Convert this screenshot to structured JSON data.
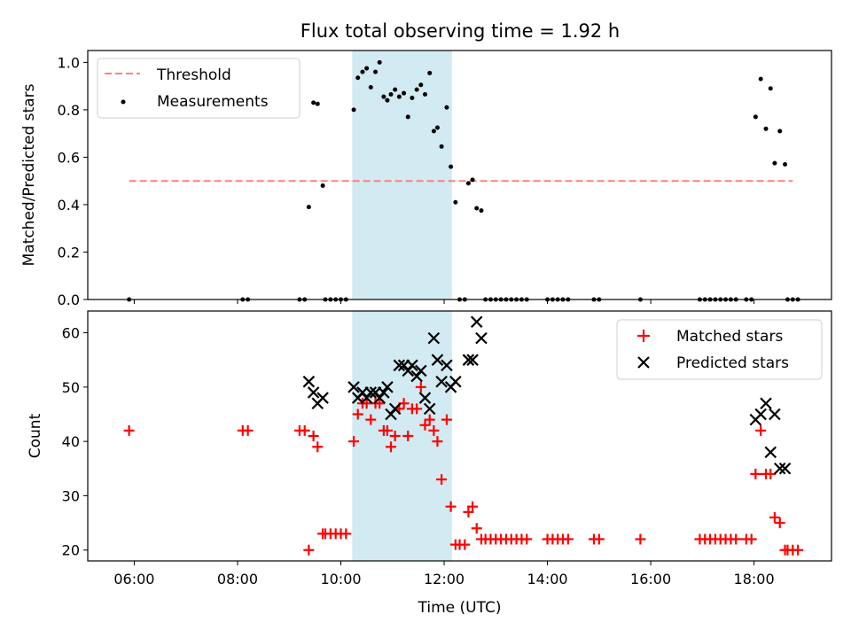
{
  "chart_data": {
    "title": "Flux total observing time = 1.92 h",
    "xlabel": "Time (UTC)",
    "x_unit": "hours",
    "xlim": [
      5.1,
      19.5
    ],
    "x_ticks": [
      6,
      8,
      10,
      12,
      14,
      16,
      18
    ],
    "x_tick_labels": [
      "06:00",
      "08:00",
      "10:00",
      "12:00",
      "14:00",
      "16:00",
      "18:00"
    ],
    "highlight_span": {
      "x": [
        10.22,
        12.15
      ],
      "color": "#add8e6"
    },
    "panels": [
      {
        "type": "scatter",
        "ylabel": "Matched/Predicted stars",
        "ylim": [
          0,
          1.05
        ],
        "y_ticks": [
          0.0,
          0.2,
          0.4,
          0.6,
          0.8,
          1.0
        ],
        "y_tick_labels": [
          "0.0",
          "0.2",
          "0.4",
          "0.6",
          "0.8",
          "1.0"
        ],
        "legend": {
          "placement": "top-left",
          "entries": [
            {
              "label": "Threshold",
              "style": "dashed-line",
              "color": "#ff7f7f"
            },
            {
              "label": "Measurements",
              "style": "dot",
              "color": "#000000"
            }
          ]
        },
        "threshold": {
          "name": "Threshold",
          "y": 0.5,
          "x": [
            5.9,
            18.75
          ],
          "color": "#ff7f7f"
        },
        "series": [
          {
            "name": "Measurements",
            "marker": "dot",
            "color": "#000000",
            "points": [
              [
                5.9,
                0.0
              ],
              [
                8.1,
                0.0
              ],
              [
                8.2,
                0.0
              ],
              [
                9.2,
                0.0
              ],
              [
                9.3,
                0.0
              ],
              [
                9.38,
                0.39
              ],
              [
                9.47,
                0.83
              ],
              [
                9.55,
                0.825
              ],
              [
                9.65,
                0.48
              ],
              [
                9.7,
                0.0
              ],
              [
                9.8,
                0.0
              ],
              [
                9.9,
                0.0
              ],
              [
                10.0,
                0.0
              ],
              [
                10.1,
                0.0
              ],
              [
                10.25,
                0.8
              ],
              [
                10.33,
                0.935
              ],
              [
                10.42,
                0.96
              ],
              [
                10.5,
                0.975
              ],
              [
                10.58,
                0.895
              ],
              [
                10.67,
                0.96
              ],
              [
                10.75,
                1.0
              ],
              [
                10.83,
                0.855
              ],
              [
                10.9,
                0.84
              ],
              [
                10.97,
                0.865
              ],
              [
                11.05,
                0.885
              ],
              [
                11.13,
                0.855
              ],
              [
                11.22,
                0.87
              ],
              [
                11.3,
                0.77
              ],
              [
                11.38,
                0.85
              ],
              [
                11.47,
                0.885
              ],
              [
                11.55,
                0.905
              ],
              [
                11.63,
                0.865
              ],
              [
                11.72,
                0.955
              ],
              [
                11.8,
                0.71
              ],
              [
                11.87,
                0.725
              ],
              [
                11.95,
                0.645
              ],
              [
                12.05,
                0.81
              ],
              [
                12.13,
                0.56
              ],
              [
                12.22,
                0.41
              ],
              [
                12.3,
                0.0
              ],
              [
                12.4,
                0.0
              ],
              [
                12.47,
                0.49
              ],
              [
                12.55,
                0.505
              ],
              [
                12.63,
                0.385
              ],
              [
                12.72,
                0.375
              ],
              [
                12.8,
                0.0
              ],
              [
                12.9,
                0.0
              ],
              [
                13.0,
                0.0
              ],
              [
                13.1,
                0.0
              ],
              [
                13.2,
                0.0
              ],
              [
                13.3,
                0.0
              ],
              [
                13.4,
                0.0
              ],
              [
                13.5,
                0.0
              ],
              [
                13.6,
                0.0
              ],
              [
                14.0,
                0.0
              ],
              [
                14.1,
                0.0
              ],
              [
                14.2,
                0.0
              ],
              [
                14.3,
                0.0
              ],
              [
                14.4,
                0.0
              ],
              [
                14.9,
                0.0
              ],
              [
                15.0,
                0.0
              ],
              [
                15.8,
                0.0
              ],
              [
                16.95,
                0.0
              ],
              [
                17.05,
                0.0
              ],
              [
                17.15,
                0.0
              ],
              [
                17.25,
                0.0
              ],
              [
                17.35,
                0.0
              ],
              [
                17.45,
                0.0
              ],
              [
                17.55,
                0.0
              ],
              [
                17.65,
                0.0
              ],
              [
                17.85,
                0.0
              ],
              [
                17.95,
                0.0
              ],
              [
                18.03,
                0.77
              ],
              [
                18.13,
                0.93
              ],
              [
                18.23,
                0.72
              ],
              [
                18.32,
                0.89
              ],
              [
                18.4,
                0.575
              ],
              [
                18.5,
                0.71
              ],
              [
                18.6,
                0.57
              ],
              [
                18.65,
                0.0
              ],
              [
                18.75,
                0.0
              ],
              [
                18.85,
                0.0
              ]
            ]
          }
        ]
      },
      {
        "type": "scatter",
        "ylabel": "Count",
        "ylim": [
          18,
          64
        ],
        "y_ticks": [
          20,
          30,
          40,
          50,
          60
        ],
        "y_tick_labels": [
          "20",
          "30",
          "40",
          "50",
          "60"
        ],
        "legend": {
          "placement": "top-right",
          "entries": [
            {
              "label": "Matched stars",
              "style": "plus",
              "color": "#ff0000"
            },
            {
              "label": "Predicted stars",
              "style": "x",
              "color": "#000000"
            }
          ]
        },
        "series": [
          {
            "name": "Matched stars",
            "marker": "plus",
            "color": "#ff0000",
            "points": [
              [
                5.9,
                42
              ],
              [
                8.1,
                42
              ],
              [
                8.2,
                42
              ],
              [
                9.2,
                42
              ],
              [
                9.3,
                42
              ],
              [
                9.38,
                20
              ],
              [
                9.47,
                41
              ],
              [
                9.55,
                39
              ],
              [
                9.65,
                23
              ],
              [
                9.7,
                23
              ],
              [
                9.8,
                23
              ],
              [
                9.9,
                23
              ],
              [
                10.0,
                23
              ],
              [
                10.1,
                23
              ],
              [
                10.25,
                40
              ],
              [
                10.33,
                45
              ],
              [
                10.42,
                47
              ],
              [
                10.5,
                47
              ],
              [
                10.58,
                44
              ],
              [
                10.67,
                47
              ],
              [
                10.75,
                47
              ],
              [
                10.83,
                42
              ],
              [
                10.9,
                42
              ],
              [
                10.97,
                39
              ],
              [
                11.05,
                41
              ],
              [
                11.13,
                46
              ],
              [
                11.22,
                47
              ],
              [
                11.3,
                41
              ],
              [
                11.38,
                46
              ],
              [
                11.47,
                46
              ],
              [
                11.55,
                50
              ],
              [
                11.63,
                43
              ],
              [
                11.72,
                44
              ],
              [
                11.8,
                42
              ],
              [
                11.87,
                40
              ],
              [
                11.95,
                33
              ],
              [
                12.05,
                44
              ],
              [
                12.13,
                28
              ],
              [
                12.22,
                21
              ],
              [
                12.3,
                21
              ],
              [
                12.4,
                21
              ],
              [
                12.47,
                27
              ],
              [
                12.55,
                28
              ],
              [
                12.63,
                24
              ],
              [
                12.72,
                22
              ],
              [
                12.8,
                22
              ],
              [
                12.9,
                22
              ],
              [
                13.0,
                22
              ],
              [
                13.1,
                22
              ],
              [
                13.2,
                22
              ],
              [
                13.3,
                22
              ],
              [
                13.4,
                22
              ],
              [
                13.5,
                22
              ],
              [
                13.6,
                22
              ],
              [
                14.0,
                22
              ],
              [
                14.1,
                22
              ],
              [
                14.2,
                22
              ],
              [
                14.3,
                22
              ],
              [
                14.4,
                22
              ],
              [
                14.9,
                22
              ],
              [
                15.0,
                22
              ],
              [
                15.8,
                22
              ],
              [
                16.95,
                22
              ],
              [
                17.05,
                22
              ],
              [
                17.15,
                22
              ],
              [
                17.25,
                22
              ],
              [
                17.35,
                22
              ],
              [
                17.45,
                22
              ],
              [
                17.55,
                22
              ],
              [
                17.65,
                22
              ],
              [
                17.85,
                22
              ],
              [
                17.95,
                22
              ],
              [
                18.03,
                34
              ],
              [
                18.13,
                42
              ],
              [
                18.23,
                34
              ],
              [
                18.32,
                34
              ],
              [
                18.4,
                26
              ],
              [
                18.5,
                25
              ],
              [
                18.6,
                20
              ],
              [
                18.65,
                20
              ],
              [
                18.75,
                20
              ],
              [
                18.85,
                20
              ]
            ]
          },
          {
            "name": "Predicted stars",
            "marker": "x",
            "color": "#000000",
            "points": [
              [
                9.38,
                51
              ],
              [
                9.47,
                49
              ],
              [
                9.55,
                47
              ],
              [
                9.65,
                48
              ],
              [
                10.25,
                50
              ],
              [
                10.33,
                48
              ],
              [
                10.42,
                49
              ],
              [
                10.5,
                48
              ],
              [
                10.58,
                49
              ],
              [
                10.67,
                49
              ],
              [
                10.75,
                48
              ],
              [
                10.83,
                49
              ],
              [
                10.9,
                50
              ],
              [
                10.97,
                45
              ],
              [
                11.05,
                46
              ],
              [
                11.13,
                54
              ],
              [
                11.22,
                54
              ],
              [
                11.3,
                53
              ],
              [
                11.38,
                54
              ],
              [
                11.47,
                52
              ],
              [
                11.55,
                53
              ],
              [
                11.63,
                48
              ],
              [
                11.72,
                46
              ],
              [
                11.8,
                59
              ],
              [
                11.87,
                55
              ],
              [
                11.95,
                51
              ],
              [
                12.05,
                54
              ],
              [
                12.13,
                50
              ],
              [
                12.22,
                51
              ],
              [
                12.47,
                55
              ],
              [
                12.55,
                55
              ],
              [
                12.63,
                62
              ],
              [
                12.72,
                59
              ],
              [
                18.03,
                44
              ],
              [
                18.13,
                45
              ],
              [
                18.23,
                47
              ],
              [
                18.32,
                38
              ],
              [
                18.4,
                45
              ],
              [
                18.5,
                35
              ],
              [
                18.6,
                35
              ]
            ]
          }
        ]
      }
    ]
  }
}
